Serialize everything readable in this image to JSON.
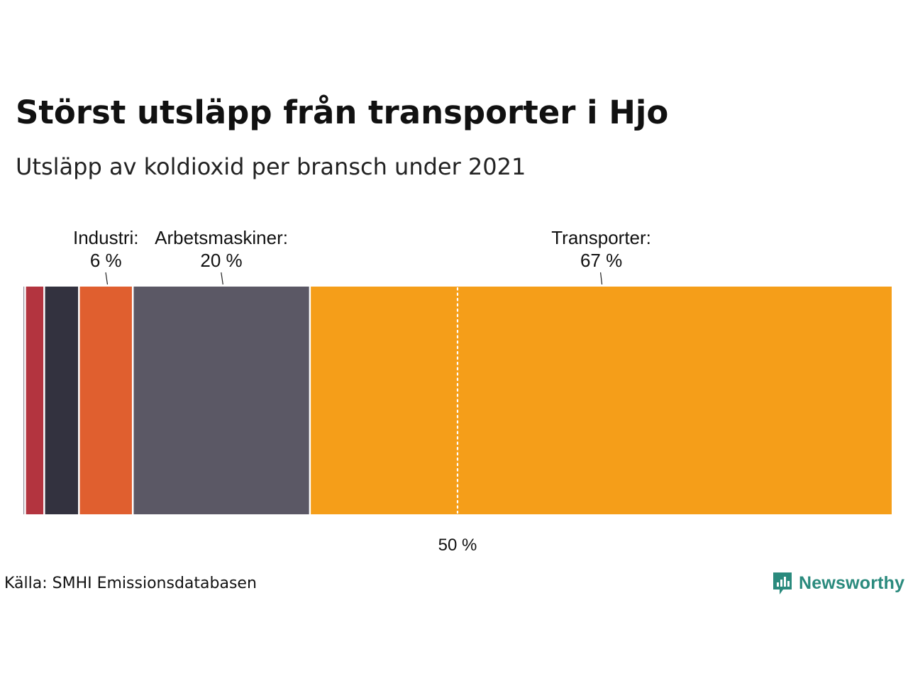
{
  "header": {
    "title": "Störst utsläpp från transporter i Hjo",
    "subtitle": "Utsläpp av koldioxid per bransch under 2021"
  },
  "footer": {
    "source": "Källa: SMHI Emissionsdatabasen",
    "brand": "Newsworthy",
    "brand_color": "#2a8a7d"
  },
  "chart_data": {
    "type": "bar",
    "orientation": "horizontal",
    "stacked": true,
    "unit": "%",
    "xlim": [
      0,
      100
    ],
    "reference_line": {
      "value": 50,
      "label": "50 %",
      "style": "dotted"
    },
    "segments": [
      {
        "name": "",
        "value": 0.3,
        "color": "#8d8a96",
        "label": "",
        "value_label": ""
      },
      {
        "name": "",
        "value": 2.2,
        "color": "#b3343f",
        "label": "",
        "value_label": ""
      },
      {
        "name": "",
        "value": 4,
        "color": "#33323f",
        "label": "",
        "value_label": ""
      },
      {
        "name": "Industri",
        "value": 6.2,
        "color": "#e05f2f",
        "label": "Industri:",
        "value_label": "6 %"
      },
      {
        "name": "Arbetsmaskiner",
        "value": 20.4,
        "color": "#5b5865",
        "label": "Arbetsmaskiner:",
        "value_label": "20 %"
      },
      {
        "name": "Transporter",
        "value": 66.9,
        "color": "#f59e19",
        "label": "Transporter:",
        "value_label": "67 %"
      }
    ]
  }
}
